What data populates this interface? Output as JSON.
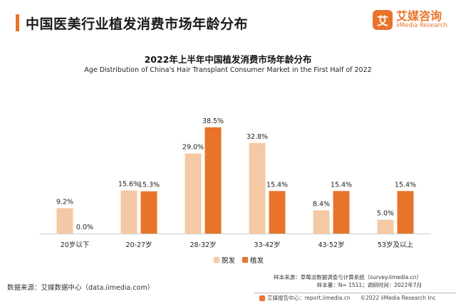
{
  "header": {
    "title": "中国医美行业植发消费市场年龄分布",
    "brand_badge": "艾",
    "brand_cn": "艾媒咨询",
    "brand_en": "iiMedia Research"
  },
  "colors": {
    "accent": "#e8742a",
    "series_hair_removal": "#f5c9a6",
    "series_hair_transplant": "#e8742a"
  },
  "chart_data": {
    "type": "bar",
    "title": "2022年上半年中国植发消费市场年龄分布",
    "subtitle": "Age Distribution of China's Hair Transplant Consumer Market in the First Half of 2022",
    "categories": [
      "20岁以下",
      "20-27岁",
      "28-32岁",
      "33-42岁",
      "43-52岁",
      "53岁及以上"
    ],
    "series": [
      {
        "name": "脱发",
        "values": [
          9.2,
          15.6,
          29.0,
          32.8,
          8.4,
          5.0
        ]
      },
      {
        "name": "植发",
        "values": [
          0.0,
          15.3,
          38.5,
          15.4,
          15.4,
          15.4
        ]
      }
    ],
    "value_labels": [
      [
        "9.2%",
        "15.6%",
        "29.0%",
        "32.8%",
        "8.4%",
        "5.0%"
      ],
      [
        "0.0%",
        "15.3%",
        "38.5%",
        "15.4%",
        "15.4%",
        "15.4%"
      ]
    ],
    "ylim": [
      0,
      40
    ],
    "legend_position": "bottom-center",
    "grid": false
  },
  "footer": {
    "source_left": "数据来源：艾媒数据中心（data.iimedia.com）",
    "sample_source": "样本来源：草莓派数据调查与计算系统（survey.iimedia.cn）",
    "sample_info": "样本量：N= 1511；调研时间：2022年7月",
    "report_center": "艾媒报告中心：report.iimedia.cn",
    "copyright": "©2022  iiMedia Research  Inc"
  }
}
